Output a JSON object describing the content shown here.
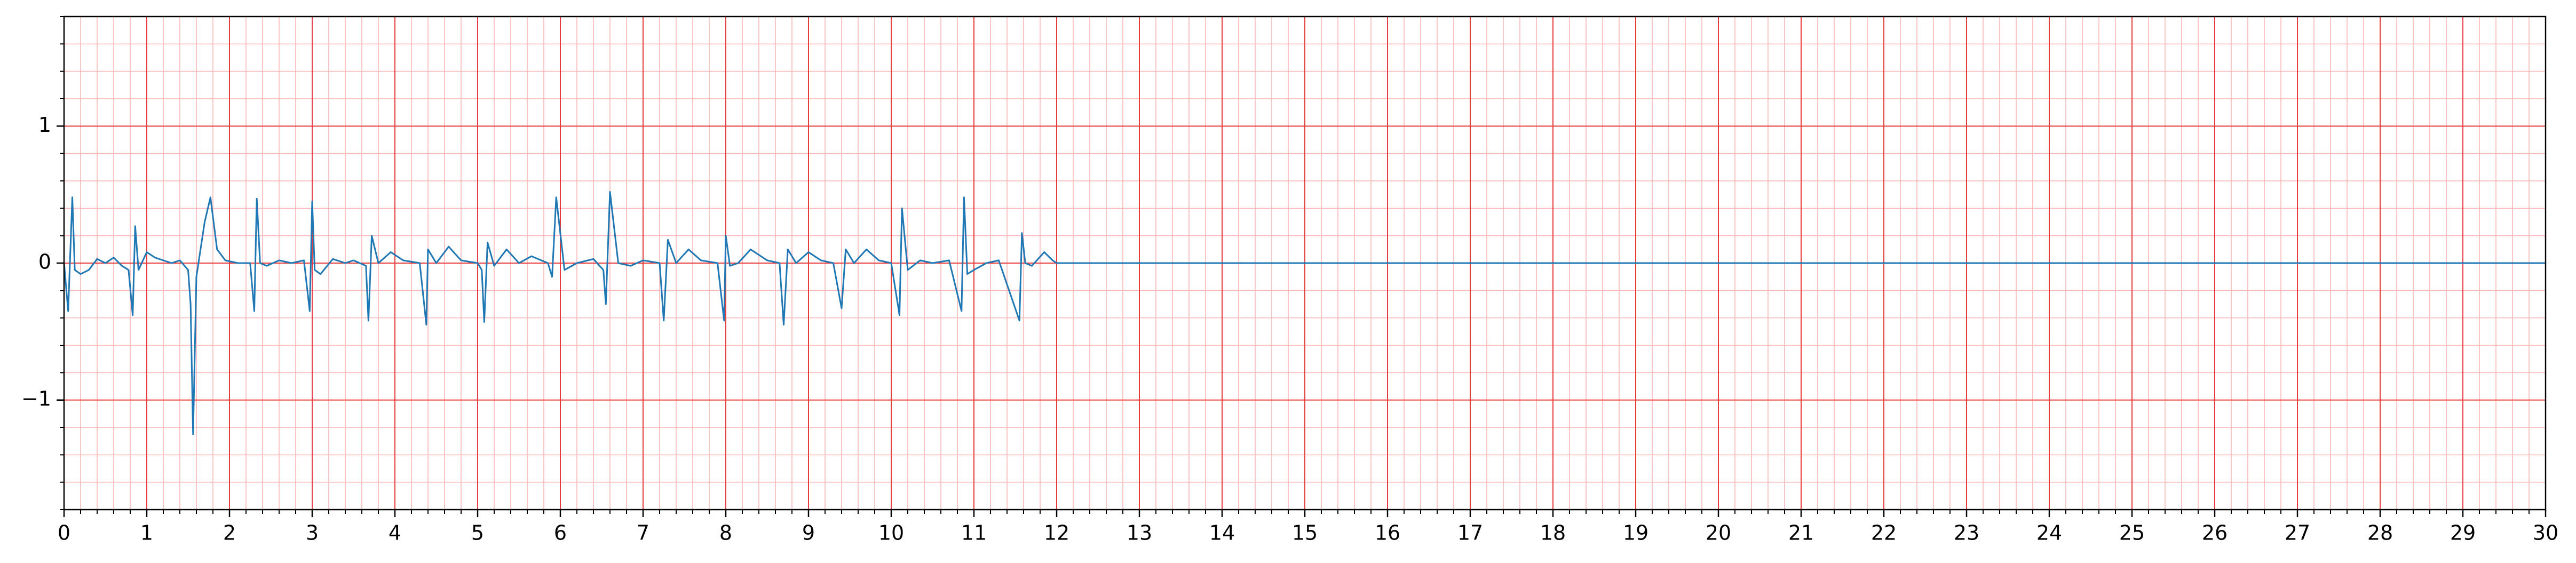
{
  "chart_data": {
    "type": "line",
    "x": [
      0,
      0.05,
      0.1,
      0.13,
      0.2,
      0.3,
      0.4,
      0.5,
      0.6,
      0.7,
      0.78,
      0.83,
      0.86,
      0.9,
      1.0,
      1.1,
      1.2,
      1.3,
      1.4,
      1.5,
      1.53,
      1.56,
      1.6,
      1.65,
      1.7,
      1.77,
      1.85,
      1.95,
      2.1,
      2.25,
      2.3,
      2.33,
      2.37,
      2.45,
      2.6,
      2.75,
      2.9,
      2.97,
      3.0,
      3.03,
      3.1,
      3.25,
      3.4,
      3.5,
      3.65,
      3.68,
      3.72,
      3.8,
      3.95,
      4.1,
      4.3,
      4.38,
      4.4,
      4.5,
      4.65,
      4.8,
      5.0,
      5.05,
      5.08,
      5.12,
      5.2,
      5.35,
      5.5,
      5.65,
      5.85,
      5.9,
      5.95,
      6.05,
      6.2,
      6.4,
      6.52,
      6.55,
      6.6,
      6.7,
      6.85,
      7.0,
      7.2,
      7.25,
      7.3,
      7.4,
      7.55,
      7.7,
      7.9,
      7.98,
      8.0,
      8.05,
      8.15,
      8.3,
      8.5,
      8.65,
      8.7,
      8.75,
      8.85,
      9.0,
      9.15,
      9.3,
      9.4,
      9.45,
      9.55,
      9.7,
      9.85,
      10.0,
      10.1,
      10.13,
      10.2,
      10.35,
      10.5,
      10.7,
      10.85,
      10.88,
      10.92,
      11.0,
      11.15,
      11.3,
      11.55,
      11.58,
      11.62,
      11.7,
      11.85,
      11.95,
      12.0,
      30
    ],
    "series": [
      {
        "color": "#1f77b4",
        "values": [
          0,
          -0.35,
          0.48,
          -0.05,
          -0.08,
          -0.05,
          0.03,
          0.0,
          0.04,
          -0.02,
          -0.05,
          -0.38,
          0.27,
          -0.05,
          0.08,
          0.04,
          0.02,
          0.0,
          0.02,
          -0.05,
          -0.3,
          -1.25,
          -0.1,
          0.1,
          0.3,
          0.48,
          0.1,
          0.02,
          0.0,
          0.0,
          -0.35,
          0.47,
          0.0,
          -0.02,
          0.02,
          0.0,
          0.02,
          -0.35,
          0.45,
          -0.05,
          -0.08,
          0.03,
          0.0,
          0.02,
          -0.02,
          -0.42,
          0.2,
          0.0,
          0.08,
          0.02,
          0.0,
          -0.45,
          0.1,
          0.0,
          0.12,
          0.02,
          0.0,
          -0.05,
          -0.43,
          0.15,
          -0.02,
          0.1,
          0.0,
          0.05,
          0.0,
          -0.1,
          0.48,
          -0.05,
          0.0,
          0.03,
          -0.05,
          -0.3,
          0.52,
          0.0,
          -0.02,
          0.02,
          0.0,
          -0.42,
          0.17,
          0.0,
          0.1,
          0.02,
          0.0,
          -0.42,
          0.2,
          -0.02,
          0.0,
          0.1,
          0.02,
          0.0,
          -0.45,
          0.1,
          0.0,
          0.08,
          0.02,
          0.0,
          -0.33,
          0.1,
          0.0,
          0.1,
          0.02,
          0.0,
          -0.38,
          0.4,
          -0.05,
          0.02,
          0.0,
          0.02,
          -0.35,
          0.48,
          -0.08,
          -0.05,
          0.0,
          0.02,
          -0.42,
          0.22,
          0.0,
          -0.02,
          0.08,
          0.02,
          0.0,
          0
        ]
      }
    ],
    "xlim": [
      0,
      30
    ],
    "xticks": [
      0,
      1,
      2,
      3,
      4,
      5,
      6,
      7,
      8,
      9,
      10,
      11,
      12,
      13,
      14,
      15,
      16,
      17,
      18,
      19,
      20,
      21,
      22,
      23,
      24,
      25,
      26,
      27,
      28,
      29,
      30
    ],
    "ylim": [
      -1.8,
      1.8
    ],
    "yticks": [
      {
        "value": -1,
        "label": "−1"
      },
      0,
      1
    ],
    "grid": true,
    "grid_color": "#e83c3c",
    "minor_grid_color": "#f7b3b3"
  }
}
